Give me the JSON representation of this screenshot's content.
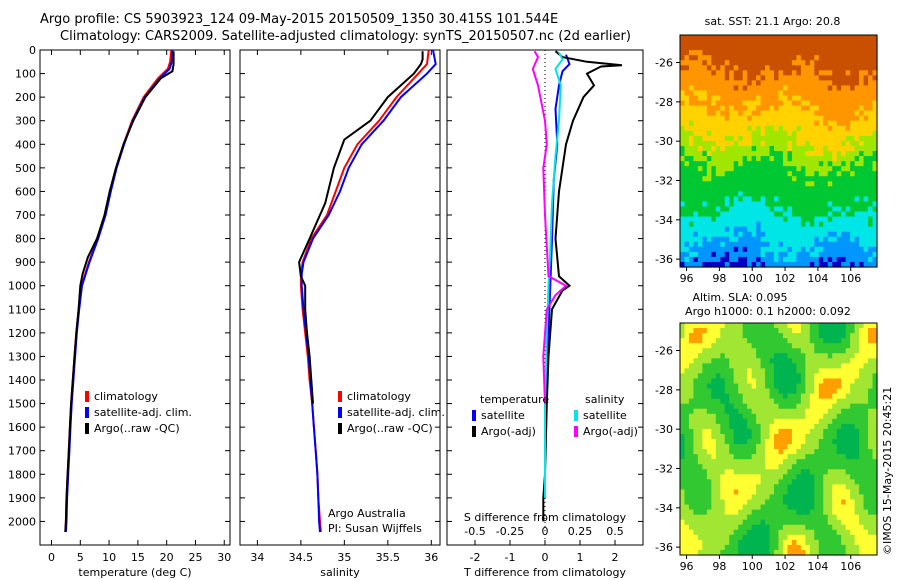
{
  "title_line1": "Argo profile: CS 5903923_124 09-May-2015 20150509_1350 30.415S 101.544E",
  "title_line2": "Climatology: CARS2009. Satellite-adjusted climatology: synTS_20150507.nc (2d earlier)",
  "footer_vertical": "©IMOS 15-May-2015 20:45:21",
  "chart_data": [
    {
      "id": "temperature",
      "type": "line",
      "xlabel": "temperature (deg C)",
      "ylabel": "",
      "xlim": [
        -2,
        31
      ],
      "ylim": [
        2100,
        0
      ],
      "xticks": [
        0,
        5,
        10,
        15,
        20,
        25,
        30
      ],
      "yticks": [
        0,
        100,
        200,
        300,
        400,
        500,
        600,
        700,
        800,
        900,
        1000,
        1100,
        1200,
        1300,
        1400,
        1500,
        1600,
        1700,
        1800,
        1900,
        2000
      ],
      "legend_position": "lower-center",
      "series": [
        {
          "name": "climatology",
          "color": "#ff0000",
          "points": [
            [
              20.8,
              0
            ],
            [
              20.6,
              50
            ],
            [
              20.2,
              80
            ],
            [
              18.5,
              120
            ],
            [
              16.0,
              200
            ],
            [
              14.0,
              300
            ],
            [
              12.5,
              400
            ],
            [
              11.2,
              500
            ],
            [
              10.2,
              600
            ],
            [
              9.3,
              700
            ],
            [
              8.0,
              800
            ],
            [
              6.5,
              900
            ],
            [
              5.2,
              1000
            ],
            [
              4.7,
              1100
            ],
            [
              4.3,
              1200
            ],
            [
              4.0,
              1300
            ],
            [
              3.7,
              1400
            ],
            [
              3.4,
              1500
            ],
            [
              3.2,
              1600
            ],
            [
              3.0,
              1700
            ],
            [
              2.8,
              1800
            ],
            [
              2.6,
              1900
            ],
            [
              2.5,
              2000
            ],
            [
              2.4,
              2045
            ]
          ]
        },
        {
          "name": "satellite-adj. clim.",
          "color": "#0000ff",
          "points": [
            [
              21.0,
              0
            ],
            [
              20.9,
              50
            ],
            [
              20.5,
              80
            ],
            [
              18.8,
              120
            ],
            [
              16.2,
              200
            ],
            [
              14.1,
              300
            ],
            [
              12.6,
              400
            ],
            [
              11.3,
              500
            ],
            [
              10.3,
              600
            ],
            [
              9.4,
              700
            ],
            [
              8.1,
              800
            ],
            [
              6.6,
              900
            ],
            [
              5.3,
              1000
            ],
            [
              4.8,
              1100
            ],
            [
              4.4,
              1200
            ],
            [
              4.1,
              1300
            ],
            [
              3.8,
              1400
            ],
            [
              3.5,
              1500
            ],
            [
              3.3,
              1600
            ],
            [
              3.1,
              1700
            ],
            [
              2.9,
              1800
            ],
            [
              2.7,
              1900
            ],
            [
              2.6,
              2000
            ],
            [
              2.5,
              2045
            ]
          ]
        },
        {
          "name": "Argo(..raw -QC)",
          "color": "#000000",
          "points": [
            [
              21.2,
              5
            ],
            [
              21.2,
              60
            ],
            [
              21.0,
              90
            ],
            [
              19.0,
              120
            ],
            [
              16.3,
              200
            ],
            [
              14.2,
              300
            ],
            [
              12.5,
              400
            ],
            [
              11.2,
              500
            ],
            [
              10.1,
              600
            ],
            [
              9.2,
              700
            ],
            [
              7.9,
              800
            ],
            [
              6.3,
              880
            ],
            [
              5.4,
              950
            ],
            [
              5.0,
              1000
            ],
            [
              4.7,
              1100
            ],
            [
              4.3,
              1200
            ],
            [
              4.0,
              1300
            ],
            [
              3.7,
              1400
            ],
            [
              3.4,
              1500
            ],
            [
              3.2,
              1600
            ],
            [
              3.0,
              1700
            ],
            [
              2.8,
              1800
            ],
            [
              2.6,
              1900
            ],
            [
              2.5,
              2000
            ],
            [
              2.4,
              2045
            ]
          ]
        }
      ]
    },
    {
      "id": "salinity",
      "type": "line",
      "xlabel": "salinity",
      "ylabel": "",
      "xlim": [
        33.8,
        36.1
      ],
      "ylim": [
        2100,
        0
      ],
      "xticks": [
        34,
        34.5,
        35,
        35.5,
        36
      ],
      "legend_position": "lower-center",
      "annotation_lines": [
        "Argo Australia",
        "PI: Susan Wijffels"
      ],
      "series": [
        {
          "name": "climatology",
          "color": "#ff0000",
          "points": [
            [
              35.97,
              0
            ],
            [
              35.95,
              60
            ],
            [
              35.85,
              100
            ],
            [
              35.6,
              200
            ],
            [
              35.4,
              300
            ],
            [
              35.15,
              400
            ],
            [
              35.0,
              500
            ],
            [
              34.9,
              600
            ],
            [
              34.8,
              700
            ],
            [
              34.62,
              800
            ],
            [
              34.52,
              900
            ],
            [
              34.5,
              950
            ],
            [
              34.5,
              1000
            ],
            [
              34.52,
              1100
            ],
            [
              34.55,
              1200
            ],
            [
              34.58,
              1300
            ],
            [
              34.6,
              1400
            ],
            [
              34.63,
              1500
            ],
            [
              34.65,
              1600
            ],
            [
              34.67,
              1700
            ],
            [
              34.69,
              1800
            ],
            [
              34.7,
              1900
            ],
            [
              34.72,
              2000
            ],
            [
              34.73,
              2045
            ]
          ]
        },
        {
          "name": "satellite-adj. clim.",
          "color": "#0000ff",
          "points": [
            [
              36.02,
              0
            ],
            [
              36.05,
              60
            ],
            [
              35.95,
              100
            ],
            [
              35.65,
              200
            ],
            [
              35.45,
              300
            ],
            [
              35.2,
              400
            ],
            [
              35.05,
              500
            ],
            [
              34.95,
              600
            ],
            [
              34.82,
              700
            ],
            [
              34.64,
              800
            ],
            [
              34.53,
              900
            ],
            [
              34.51,
              950
            ],
            [
              34.51,
              1000
            ],
            [
              34.53,
              1100
            ],
            [
              34.56,
              1200
            ],
            [
              34.59,
              1300
            ],
            [
              34.61,
              1400
            ],
            [
              34.63,
              1500
            ],
            [
              34.65,
              1600
            ],
            [
              34.67,
              1700
            ],
            [
              34.69,
              1800
            ],
            [
              34.7,
              1900
            ],
            [
              34.71,
              2000
            ],
            [
              34.72,
              2045
            ]
          ]
        },
        {
          "name": "Argo(..raw -QC)",
          "color": "#000000",
          "points": [
            [
              35.9,
              5
            ],
            [
              35.9,
              40
            ],
            [
              35.88,
              60
            ],
            [
              35.8,
              100
            ],
            [
              35.5,
              200
            ],
            [
              35.3,
              300
            ],
            [
              35.0,
              380
            ],
            [
              34.88,
              500
            ],
            [
              34.78,
              650
            ],
            [
              34.6,
              800
            ],
            [
              34.48,
              900
            ],
            [
              34.5,
              960
            ],
            [
              34.55,
              1000
            ],
            [
              34.55,
              1100
            ],
            [
              34.57,
              1200
            ],
            [
              34.6,
              1300
            ],
            [
              34.62,
              1400
            ],
            [
              34.64,
              1500
            ]
          ]
        }
      ]
    },
    {
      "id": "difference",
      "type": "line",
      "xlabel": "T difference from climatology",
      "top_axis_label": "S difference from climatology",
      "xlim": [
        -2.8,
        2.8
      ],
      "ylim": [
        2100,
        0
      ],
      "xticks": [
        -2,
        -1,
        0,
        1,
        2
      ],
      "top_tick_labels": [
        "-0.5",
        "-0.25",
        "0",
        "0.25",
        "0.5"
      ],
      "legend_position": "middle",
      "legend_headers": [
        "temperature",
        "salinity"
      ],
      "series": [
        {
          "name": "satellite",
          "group": "temperature",
          "color": "#0000ff",
          "points": [
            [
              0.6,
              20
            ],
            [
              0.7,
              60
            ],
            [
              0.5,
              90
            ],
            [
              0.4,
              150
            ],
            [
              0.3,
              250
            ],
            [
              0.35,
              400
            ],
            [
              0.25,
              550
            ],
            [
              0.2,
              800
            ],
            [
              0.15,
              1000
            ],
            [
              0.1,
              1200
            ],
            [
              0.05,
              1400
            ],
            [
              0.0,
              1600
            ],
            [
              0.0,
              1900
            ]
          ]
        },
        {
          "name": "Argo(-adj)",
          "group": "temperature",
          "color": "#000000",
          "points": [
            [
              0.3,
              5
            ],
            [
              0.5,
              30
            ],
            [
              1.2,
              50
            ],
            [
              2.2,
              65
            ],
            [
              1.6,
              70
            ],
            [
              1.2,
              100
            ],
            [
              1.4,
              150
            ],
            [
              1.1,
              200
            ],
            [
              0.8,
              300
            ],
            [
              0.6,
              400
            ],
            [
              0.4,
              600
            ],
            [
              0.3,
              800
            ],
            [
              0.4,
              960
            ],
            [
              0.7,
              1000
            ],
            [
              0.5,
              1020
            ],
            [
              0.2,
              1100
            ],
            [
              0.1,
              1300
            ],
            [
              0.05,
              1500
            ],
            [
              0.0,
              1800
            ],
            [
              -0.05,
              1900
            ],
            [
              -0.05,
              2000
            ]
          ]
        },
        {
          "name": "satellite",
          "group": "salinity",
          "color": "#00e5e5",
          "points": [
            [
              0.4,
              10
            ],
            [
              0.5,
              40
            ],
            [
              0.3,
              80
            ],
            [
              0.45,
              150
            ],
            [
              0.4,
              300
            ],
            [
              0.3,
              450
            ],
            [
              0.2,
              650
            ],
            [
              0.15,
              850
            ],
            [
              0.1,
              1000
            ],
            [
              0.05,
              1200
            ],
            [
              0.0,
              1500
            ],
            [
              0.0,
              1900
            ]
          ]
        },
        {
          "name": "Argo(-adj)",
          "group": "salinity",
          "color": "#ff00ff",
          "points": [
            [
              -0.3,
              5
            ],
            [
              -0.2,
              30
            ],
            [
              -0.35,
              80
            ],
            [
              -0.2,
              150
            ],
            [
              0.0,
              300
            ],
            [
              0.05,
              400
            ],
            [
              -0.05,
              500
            ],
            [
              0.0,
              700
            ],
            [
              0.1,
              960
            ],
            [
              0.6,
              1000
            ],
            [
              0.3,
              1040
            ],
            [
              0.05,
              1100
            ],
            [
              -0.05,
              1300
            ],
            [
              0.0,
              1500
            ]
          ]
        }
      ]
    },
    {
      "id": "sst_map",
      "type": "heatmap",
      "title": "sat. SST: 21.1  Argo: 20.8",
      "xlim": [
        95.6,
        107.6
      ],
      "ylim": [
        -36.4,
        -24.6
      ],
      "xticks": [
        96,
        98,
        100,
        102,
        104,
        106
      ],
      "yticks": [
        -26,
        -28,
        -30,
        -32,
        -34,
        -36
      ],
      "colors": [
        "#0000c8",
        "#0096ff",
        "#00e6e6",
        "#00c832",
        "#a0e600",
        "#ffd200",
        "#ff9600",
        "#c85000"
      ]
    },
    {
      "id": "sla_map",
      "type": "heatmap",
      "title_line1": "Altim. SLA: 0.095",
      "title_line2": "Argo h1000: 0.1  h2000: 0.092",
      "xlim": [
        95.6,
        107.6
      ],
      "ylim": [
        -36.4,
        -24.6
      ],
      "xticks": [
        96,
        98,
        100,
        102,
        104,
        106
      ],
      "yticks": [
        -26,
        -28,
        -30,
        -32,
        -34,
        -36
      ],
      "colors": [
        "#00b450",
        "#32c832",
        "#a0e632",
        "#ffff32",
        "#ffa000"
      ]
    }
  ]
}
